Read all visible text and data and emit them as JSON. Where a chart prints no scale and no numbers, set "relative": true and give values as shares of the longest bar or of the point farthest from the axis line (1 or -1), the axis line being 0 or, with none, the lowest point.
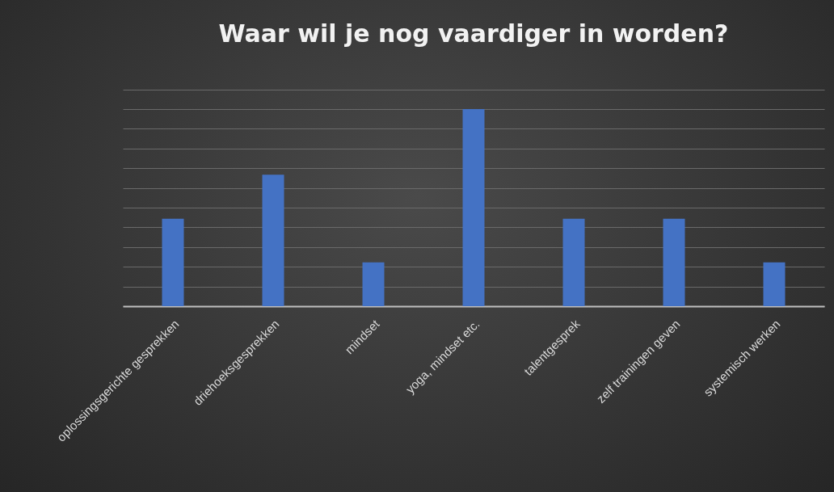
{
  "chart_data": {
    "type": "bar",
    "title": "Waar wil je nog vaardiger in worden?",
    "categories": [
      "oplossingsgerichte gesprekken",
      "driehoeksgesprekken",
      "mindset",
      "yoga, mindset etc.",
      "talentgesprek",
      "zelf trainingen geven",
      "systemisch werken"
    ],
    "values": [
      0.444,
      0.667,
      0.222,
      1,
      0.444,
      0.444,
      0.222
    ],
    "color": "#4472c4",
    "relative": true,
    "grid": "y"
  }
}
